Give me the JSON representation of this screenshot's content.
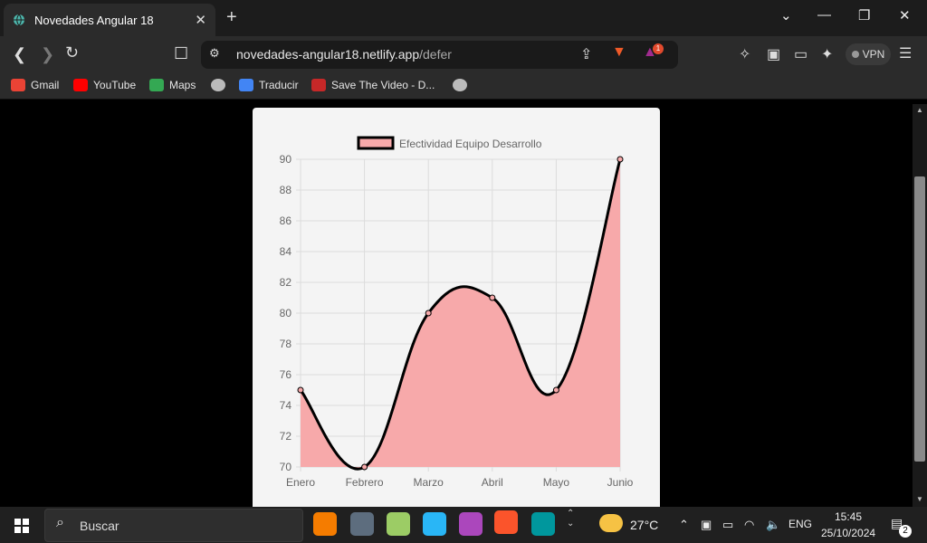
{
  "browser": {
    "tab_title": "Novedades Angular 18",
    "url_host": "novedades-angular18.netlify.app",
    "url_path": "/defer",
    "vpn_label": "VPN",
    "notification_count": "1",
    "bookmarks": [
      "Gmail",
      "YouTube",
      "Maps",
      "Traducir",
      "Save The Video - D..."
    ]
  },
  "chart_data": {
    "type": "area",
    "categories": [
      "Enero",
      "Febrero",
      "Marzo",
      "Abril",
      "Mayo",
      "Junio"
    ],
    "series": [
      {
        "name": "Efectividad Equipo Desarrollo",
        "values": [
          75,
          70,
          80,
          81,
          75,
          90
        ]
      }
    ],
    "y_ticks": [
      "90",
      "88",
      "86",
      "84",
      "82",
      "80",
      "78",
      "76",
      "74",
      "72",
      "70"
    ],
    "ylim": [
      70,
      90
    ],
    "grid": true,
    "legend": "top",
    "line_color": "#000000",
    "fill_color": "#f7a9aa"
  },
  "taskbar": {
    "search_placeholder": "Buscar",
    "weather": "27°C",
    "lang": "ENG",
    "time": "15:45",
    "date": "25/10/2024",
    "notifications": "2"
  }
}
